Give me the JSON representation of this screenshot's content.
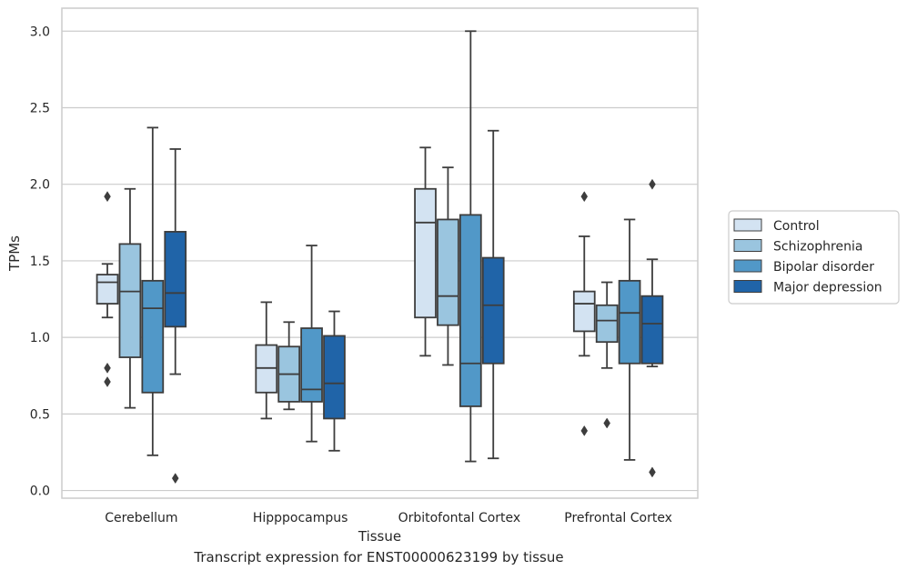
{
  "chart_data": {
    "type": "boxplot",
    "xlabel": "Tissue",
    "ylabel": "TPMs",
    "ylim": [
      -0.05,
      3.15
    ],
    "yticks": [
      "0.0",
      "0.5",
      "1.0",
      "1.5",
      "2.0",
      "2.5",
      "3.0"
    ],
    "grid": true,
    "legend_position": "right",
    "categories": [
      "Cerebellum",
      "Hipppocampus",
      "Orbitofontal Cortex",
      "Prefrontal Cortex"
    ],
    "series": [
      {
        "name": "Control",
        "color": "#d3e3f2",
        "boxes": [
          {
            "whisker_low": 1.13,
            "q1": 1.22,
            "median": 1.36,
            "q3": 1.41,
            "whisker_high": 1.48,
            "outliers": [
              1.92,
              0.8,
              0.71
            ]
          },
          {
            "whisker_low": 0.47,
            "q1": 0.64,
            "median": 0.8,
            "q3": 0.95,
            "whisker_high": 1.23,
            "outliers": []
          },
          {
            "whisker_low": 0.88,
            "q1": 1.13,
            "median": 1.75,
            "q3": 1.97,
            "whisker_high": 2.24,
            "outliers": []
          },
          {
            "whisker_low": 0.88,
            "q1": 1.04,
            "median": 1.22,
            "q3": 1.3,
            "whisker_high": 1.66,
            "outliers": [
              1.92,
              0.39
            ]
          }
        ]
      },
      {
        "name": "Schizophrenia",
        "color": "#9ac5df",
        "boxes": [
          {
            "whisker_low": 0.54,
            "q1": 0.87,
            "median": 1.3,
            "q3": 1.61,
            "whisker_high": 1.97,
            "outliers": []
          },
          {
            "whisker_low": 0.53,
            "q1": 0.58,
            "median": 0.76,
            "q3": 0.94,
            "whisker_high": 1.1,
            "outliers": []
          },
          {
            "whisker_low": 0.82,
            "q1": 1.08,
            "median": 1.27,
            "q3": 1.77,
            "whisker_high": 2.11,
            "outliers": []
          },
          {
            "whisker_low": 0.8,
            "q1": 0.97,
            "median": 1.11,
            "q3": 1.21,
            "whisker_high": 1.36,
            "outliers": [
              0.44
            ]
          }
        ]
      },
      {
        "name": "Bipolar disorder",
        "color": "#5198c8",
        "boxes": [
          {
            "whisker_low": 0.23,
            "q1": 0.64,
            "median": 1.19,
            "q3": 1.37,
            "whisker_high": 2.37,
            "outliers": []
          },
          {
            "whisker_low": 0.32,
            "q1": 0.58,
            "median": 0.66,
            "q3": 1.06,
            "whisker_high": 1.6,
            "outliers": []
          },
          {
            "whisker_low": 0.19,
            "q1": 0.55,
            "median": 0.83,
            "q3": 1.8,
            "whisker_high": 3.0,
            "outliers": []
          },
          {
            "whisker_low": 0.2,
            "q1": 0.83,
            "median": 1.16,
            "q3": 1.37,
            "whisker_high": 1.77,
            "outliers": []
          }
        ]
      },
      {
        "name": "Major depression",
        "color": "#2064a8",
        "boxes": [
          {
            "whisker_low": 0.76,
            "q1": 1.07,
            "median": 1.29,
            "q3": 1.69,
            "whisker_high": 2.23,
            "outliers": [
              0.08
            ]
          },
          {
            "whisker_low": 0.26,
            "q1": 0.47,
            "median": 0.7,
            "q3": 1.01,
            "whisker_high": 1.17,
            "outliers": []
          },
          {
            "whisker_low": 0.21,
            "q1": 0.83,
            "median": 1.21,
            "q3": 1.52,
            "whisker_high": 2.35,
            "outliers": []
          },
          {
            "whisker_low": 0.81,
            "q1": 0.83,
            "median": 1.09,
            "q3": 1.27,
            "whisker_high": 1.51,
            "outliers": [
              2.0,
              0.12
            ]
          }
        ]
      }
    ]
  },
  "caption": "Transcript expression for ENST00000623199 by tissue"
}
